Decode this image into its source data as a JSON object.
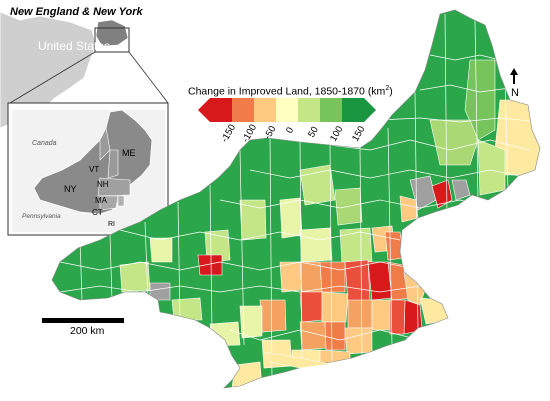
{
  "inset": {
    "title": "New England & New York",
    "country_label": "United States",
    "states": [
      "ME",
      "VT",
      "NH",
      "NY",
      "MA",
      "CT",
      "RI"
    ],
    "neighbor_labels": [
      "Canada",
      "Pennsylvania"
    ]
  },
  "legend": {
    "title": "Change in Improved Land, 1850-1870",
    "unit": "(km",
    "unit_sup": "2",
    "unit_close": ")",
    "ticks": [
      "-150",
      "-100",
      "-50",
      "0",
      "50",
      "100",
      "150"
    ],
    "colors": [
      "#d7191c",
      "#f07c4a",
      "#fec980",
      "#ffffbf",
      "#c4e687",
      "#77c35c",
      "#1a9641"
    ]
  },
  "scale_bar": {
    "label": "200 km"
  },
  "north_arrow": {
    "label": "N"
  }
}
